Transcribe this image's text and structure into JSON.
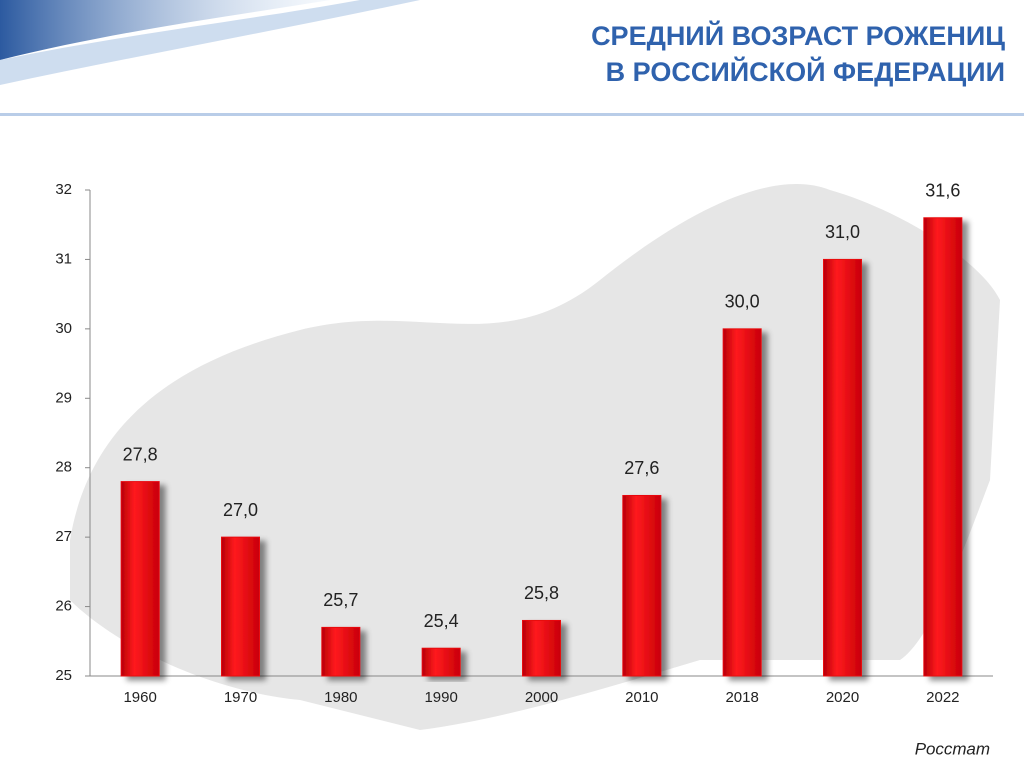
{
  "chart_data": {
    "type": "bar",
    "title": [
      "СРЕДНИЙ ВОЗРАСТ РОЖЕНИЦ",
      "В РОССИЙСКОЙ ФЕДЕРАЦИИ"
    ],
    "categories": [
      "1960",
      "1970",
      "1980",
      "1990",
      "2000",
      "2010",
      "2018",
      "2020",
      "2022"
    ],
    "values": [
      27.8,
      27.0,
      25.7,
      25.4,
      25.8,
      27.6,
      30.0,
      31.0,
      31.6
    ],
    "value_labels": [
      "27,8",
      "27,0",
      "25,7",
      "25,4",
      "25,8",
      "27,6",
      "30,0",
      "31,0",
      "31,6"
    ],
    "color": "#e8070c",
    "ylim": [
      25,
      32
    ],
    "yticks": [
      25,
      26,
      27,
      28,
      29,
      30,
      31,
      32
    ],
    "source": "Росстат"
  }
}
